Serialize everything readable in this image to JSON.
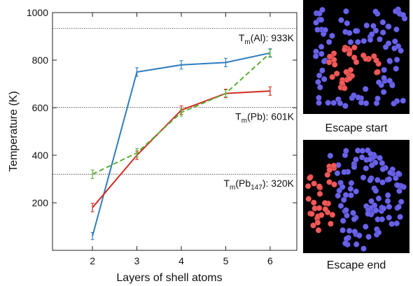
{
  "chart_data": {
    "type": "line",
    "xlabel": "Layers of shell atoms",
    "ylabel": "Temperature (K)",
    "x": [
      2,
      3,
      4,
      5,
      6
    ],
    "xlim": [
      1.1,
      6.6
    ],
    "xticks": [
      2,
      3,
      4,
      5,
      6
    ],
    "ylim": [
      0,
      1000
    ],
    "yticks": [
      200,
      400,
      600,
      800,
      1000
    ],
    "series": [
      {
        "color": "#2f7cbf",
        "dashed": false,
        "values": [
          60,
          750,
          780,
          790,
          830
        ],
        "errors": [
          15,
          18,
          18,
          18,
          18
        ]
      },
      {
        "color": "#d42a22",
        "dashed": false,
        "values": [
          180,
          400,
          590,
          660,
          670
        ],
        "errors": [
          18,
          18,
          18,
          18,
          18
        ]
      },
      {
        "color": "#5ab034",
        "dashed": true,
        "values": [
          320,
          410,
          580,
          660,
          830
        ],
        "errors": [
          18,
          18,
          15,
          15,
          15
        ]
      }
    ],
    "reference_lines": [
      {
        "value": 933,
        "parts": [
          {
            "text": "T"
          },
          {
            "text": "m",
            "sub": true
          },
          {
            "text": "(Al): 933K"
          }
        ]
      },
      {
        "value": 601,
        "parts": [
          {
            "text": "T"
          },
          {
            "text": "m",
            "sub": true
          },
          {
            "text": "(Pb): 601K"
          }
        ]
      },
      {
        "value": 320,
        "parts": [
          {
            "text": "T"
          },
          {
            "text": "m",
            "sub": true
          },
          {
            "text": "(Pb"
          },
          {
            "text": "147",
            "sub": true
          },
          {
            "text": "): 320K"
          }
        ]
      }
    ]
  },
  "images": [
    {
      "caption": "Escape start"
    },
    {
      "caption": "Escape end"
    }
  ]
}
